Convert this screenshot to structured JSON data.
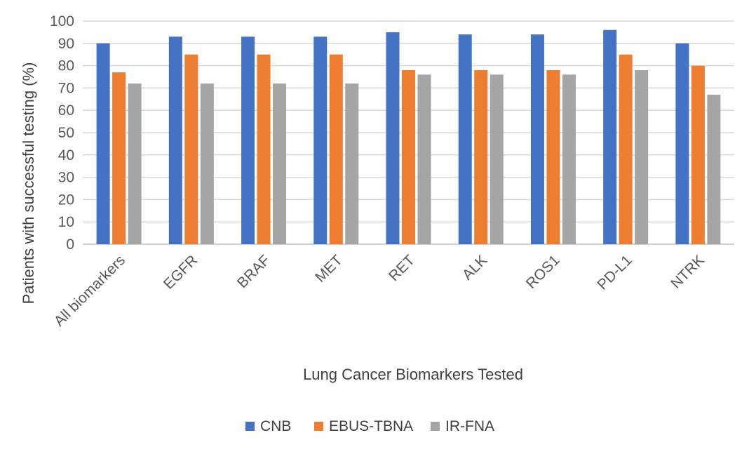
{
  "chart_data": {
    "type": "bar",
    "title": "",
    "xlabel": "Lung Cancer Biomarkers Tested",
    "ylabel": "Patients  with successful testing (%)",
    "ylim": [
      0,
      100
    ],
    "yticks": [
      0,
      10,
      20,
      30,
      40,
      50,
      60,
      70,
      80,
      90,
      100
    ],
    "grid": true,
    "legend_position": "bottom",
    "categories": [
      "All biomarkers",
      "EGFR",
      "BRAF",
      "MET",
      "RET",
      "ALK",
      "ROS1",
      "PD-L1",
      "NTRK"
    ],
    "series": [
      {
        "name": "CNB",
        "color": "#4472C4",
        "values": [
          90,
          93,
          93,
          93,
          95,
          94,
          94,
          96,
          90
        ]
      },
      {
        "name": "EBUS-TBNA",
        "color": "#ED7D31",
        "values": [
          77,
          85,
          85,
          85,
          78,
          78,
          78,
          85,
          80
        ]
      },
      {
        "name": "IR-FNA",
        "color": "#A5A5A5",
        "values": [
          72,
          72,
          72,
          72,
          76,
          76,
          76,
          78,
          67
        ]
      }
    ]
  }
}
